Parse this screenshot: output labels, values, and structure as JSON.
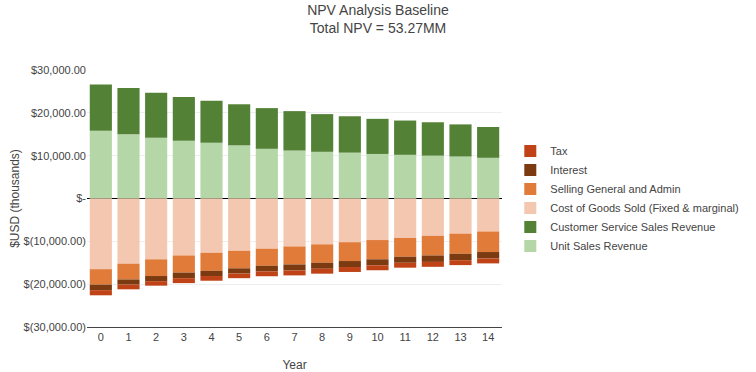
{
  "chart_data": {
    "type": "bar",
    "title": "NPV Analysis Baseline",
    "subtitle": "Total NPV = 53.27MM",
    "xlabel": "Year",
    "ylabel": "$USD (thousands)",
    "x": [
      0,
      1,
      2,
      3,
      4,
      5,
      6,
      7,
      8,
      9,
      10,
      11,
      12,
      13,
      14
    ],
    "series": [
      {
        "name": "Unit Sales Revenue",
        "color": "#b5d6a7",
        "values": [
          15800,
          15000,
          14200,
          13500,
          13000,
          12400,
          11600,
          11200,
          10900,
          10700,
          10400,
          10200,
          10000,
          9800,
          9500
        ]
      },
      {
        "name": "Customer Service Sales Revenue",
        "color": "#538135",
        "values": [
          10800,
          10800,
          10500,
          10200,
          9800,
          9600,
          9500,
          9200,
          8800,
          8500,
          8200,
          8000,
          7800,
          7500,
          7200
        ]
      },
      {
        "name": "Cost of Goods Sold (Fixed & marginal)",
        "color": "#f4c7b0",
        "values": [
          -16500,
          -15200,
          -14200,
          -13300,
          -12700,
          -12200,
          -11700,
          -11200,
          -10700,
          -10200,
          -9700,
          -9200,
          -8700,
          -8200,
          -7700
        ]
      },
      {
        "name": "Selling General and Admin",
        "color": "#e07b39",
        "values": [
          -3600,
          -3700,
          -3900,
          -4000,
          -4200,
          -4100,
          -4000,
          -4200,
          -4300,
          -4400,
          -4500,
          -4400,
          -4600,
          -4700,
          -4800
        ]
      },
      {
        "name": "Interest",
        "color": "#7b3a10",
        "values": [
          -1300,
          -1200,
          -1200,
          -1300,
          -1200,
          -1200,
          -1300,
          -1400,
          -1400,
          -1400,
          -1400,
          -1400,
          -1500,
          -1500,
          -1500
        ]
      },
      {
        "name": "Tax",
        "color": "#bf4316",
        "values": [
          -1200,
          -1100,
          -1050,
          -1150,
          -1100,
          -1100,
          -1150,
          -1150,
          -1150,
          -1150,
          -1150,
          -1150,
          -1150,
          -1150,
          -1150
        ]
      }
    ],
    "stacked": true,
    "xlim": [
      -0.5,
      14.5
    ],
    "xticks": [
      0,
      1,
      2,
      3,
      4,
      5,
      6,
      7,
      8,
      9,
      10,
      11,
      12,
      13,
      14
    ],
    "ylim": [
      -30000,
      30000
    ],
    "yticks": [
      {
        "value": -30000,
        "label": "$(30,000.00)"
      },
      {
        "value": -20000,
        "label": "$(20,000.00)"
      },
      {
        "value": -10000,
        "label": "$(10,000.00)"
      },
      {
        "value": 0,
        "label": "$-"
      },
      {
        "value": 10000,
        "label": "$10,000.00"
      },
      {
        "value": 20000,
        "label": "$20,000.00"
      },
      {
        "value": 30000,
        "label": "$30,000.00"
      }
    ],
    "grid": true,
    "legend": "right"
  }
}
